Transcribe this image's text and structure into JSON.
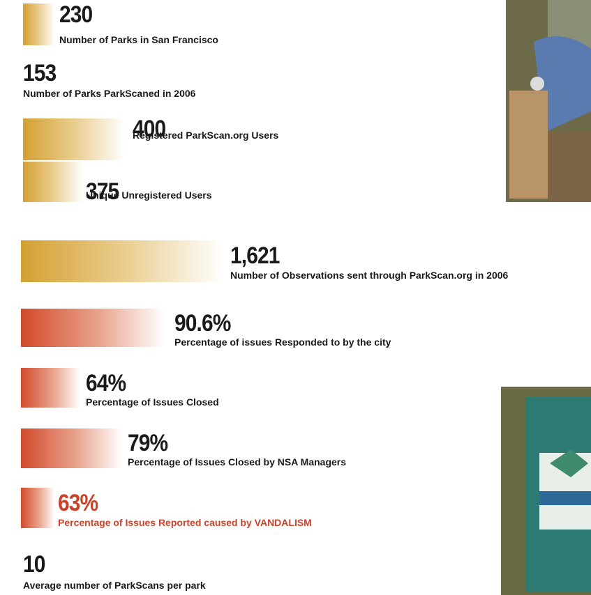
{
  "items": [
    {
      "number": "230",
      "label": "Number of Parks in San Francisco"
    },
    {
      "number": "153",
      "label": "Number of Parks ParkScaned in 2006"
    },
    {
      "number": "400",
      "label": "Registered ParkScan.org Users"
    },
    {
      "number": "375",
      "label": "Unique Unregistered Users"
    },
    {
      "number": "1,621",
      "label": "Number of Observations sent through ParkScan.org in 2006"
    },
    {
      "number": "90.6%",
      "label": "Percentage of issues Responded to by the city"
    },
    {
      "number": "64%",
      "label": "Percentage of Issues Closed"
    },
    {
      "number": "79%",
      "label": "Percentage of Issues Closed by NSA Managers"
    },
    {
      "number": "63%",
      "label": "Percentage of Issues Reported caused by VANDALISM"
    },
    {
      "number": "10",
      "label": "Average number of ParkScans per park"
    }
  ]
}
